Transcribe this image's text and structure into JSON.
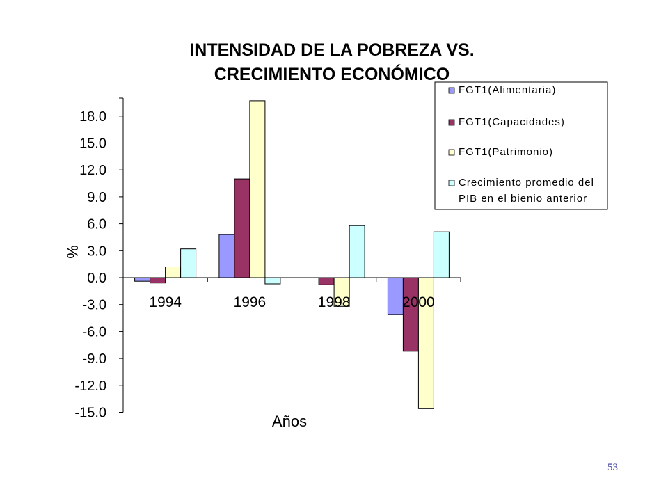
{
  "page_number": "53",
  "chart_data": {
    "type": "bar",
    "title_lines": [
      "INTENSIDAD DE LA POBREZA  VS.",
      "CRECIMIENTO ECONÓMICO"
    ],
    "xlabel": "Años",
    "ylabel": "%",
    "categories": [
      "1994",
      "1996",
      "1998",
      "2000"
    ],
    "ylim": [
      -15.0,
      20.0
    ],
    "yticks": [
      18.0,
      15.0,
      12.0,
      9.0,
      6.0,
      3.0,
      0.0,
      -3.0,
      -6.0,
      -9.0,
      -12.0,
      -15.0
    ],
    "ytick_labels": [
      "18.0",
      "15.0",
      "12.0",
      "9.0",
      "6.0",
      "3.0",
      "0.0",
      "-3.0",
      "-6.0",
      "-9.0",
      "-12.0",
      "-15.0"
    ],
    "series": [
      {
        "name": "FGT1(Alimentaria)",
        "color": "#9999ff",
        "values": [
          -0.4,
          4.8,
          null,
          -4.1
        ]
      },
      {
        "name": "FGT1(Capacidades)",
        "color": "#993366",
        "values": [
          -0.6,
          11.0,
          -0.8,
          -8.2
        ]
      },
      {
        "name": "FGT1(Patrimonio)",
        "color": "#ffffcc",
        "values": [
          1.2,
          19.7,
          -3.2,
          -14.6
        ]
      },
      {
        "name_lines": [
          "Crecimiento promedio del",
          "PIB en el bienio anterior"
        ],
        "color": "#ccffff",
        "values": [
          3.2,
          -0.7,
          5.8,
          5.1
        ]
      }
    ],
    "legend_position": "top-right"
  }
}
